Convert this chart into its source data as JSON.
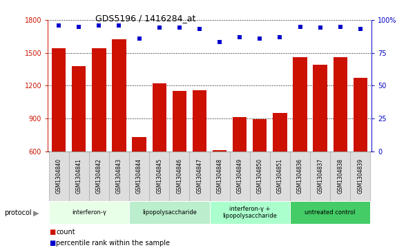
{
  "title": "GDS5196 / 1416284_at",
  "samples": [
    "GSM1304840",
    "GSM1304841",
    "GSM1304842",
    "GSM1304843",
    "GSM1304844",
    "GSM1304845",
    "GSM1304846",
    "GSM1304847",
    "GSM1304848",
    "GSM1304849",
    "GSM1304850",
    "GSM1304851",
    "GSM1304836",
    "GSM1304837",
    "GSM1304838",
    "GSM1304839"
  ],
  "counts": [
    1540,
    1380,
    1545,
    1625,
    730,
    1220,
    1150,
    1160,
    612,
    910,
    895,
    950,
    1460,
    1390,
    1460,
    1270
  ],
  "percentiles": [
    96,
    95,
    96,
    96,
    86,
    94,
    94,
    93,
    83,
    87,
    86,
    87,
    95,
    94,
    95,
    93
  ],
  "bar_color": "#cc1100",
  "dot_color": "#0000cc",
  "ylim_left": [
    600,
    1800
  ],
  "ylim_right": [
    0,
    100
  ],
  "yticks_left": [
    600,
    900,
    1200,
    1500,
    1800
  ],
  "yticks_right": [
    0,
    25,
    50,
    75,
    100
  ],
  "groups": [
    {
      "label": "interferon-γ",
      "start": 0,
      "end": 3,
      "color": "#e8ffe8"
    },
    {
      "label": "lipopolysaccharide",
      "start": 4,
      "end": 7,
      "color": "#bbeecc"
    },
    {
      "label": "interferon-γ +\nlipopolysaccharide",
      "start": 8,
      "end": 11,
      "color": "#aaffcc"
    },
    {
      "label": "untreated control",
      "start": 12,
      "end": 15,
      "color": "#44cc66"
    }
  ],
  "legend_count_label": "count",
  "legend_percentile_label": "percentile rank within the sample",
  "protocol_label": "protocol"
}
